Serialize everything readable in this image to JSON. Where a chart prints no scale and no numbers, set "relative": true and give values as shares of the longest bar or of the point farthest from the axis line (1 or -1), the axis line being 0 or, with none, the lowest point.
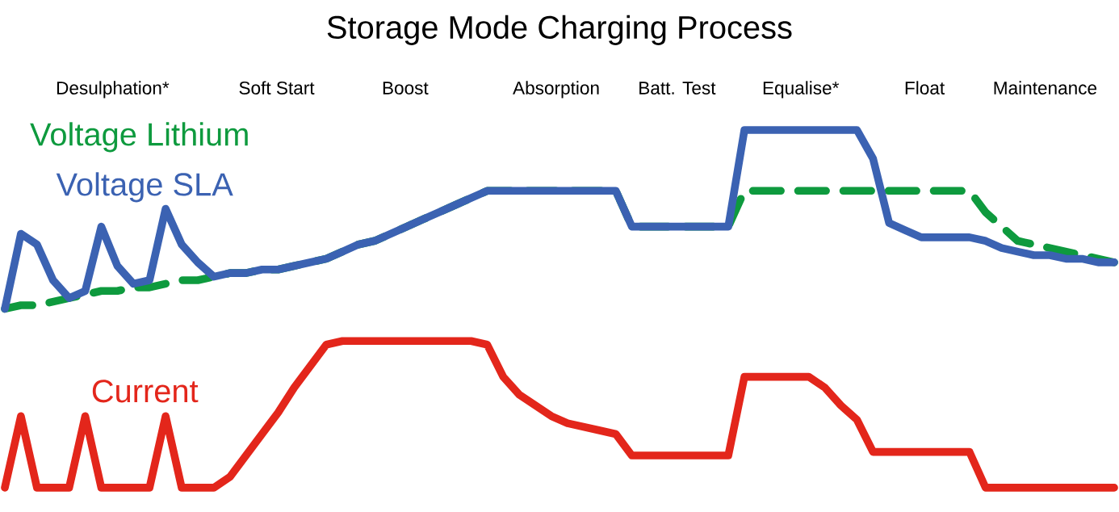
{
  "chart_data": {
    "type": "line",
    "title": "Storage Mode Charging Process",
    "relative": true,
    "legend": false,
    "annotations": [
      "Desulphation*",
      "Soft Start",
      "Boost",
      "Absorption",
      "Batt. Test",
      "Equalise*",
      "Float",
      "Maintenance"
    ],
    "categories": [
      null,
      null,
      null,
      null,
      null,
      null,
      null,
      null,
      null,
      null,
      null,
      null,
      null,
      null,
      null,
      null,
      null,
      null,
      null,
      null,
      null,
      null,
      null,
      null,
      null,
      null,
      null,
      null,
      null,
      null,
      null,
      null,
      null,
      null,
      null,
      null,
      null,
      null,
      null,
      null,
      null,
      null,
      null,
      null,
      null,
      null,
      null,
      null,
      null,
      null,
      null,
      null,
      null,
      null,
      null,
      null,
      null,
      null,
      null,
      null,
      null,
      null,
      null,
      null,
      null,
      null,
      null,
      null,
      null,
      null
    ],
    "series": [
      {
        "name": "Voltage Lithium",
        "color": "#0e9a3e",
        "line_style": "dashed",
        "values": [
          0.5,
          0.51,
          0.51,
          0.52,
          0.53,
          0.54,
          0.55,
          0.55,
          0.56,
          0.56,
          0.57,
          0.58,
          0.58,
          0.59,
          0.6,
          0.6,
          0.61,
          0.61,
          0.62,
          0.63,
          0.64,
          0.66,
          0.68,
          0.69,
          0.71,
          0.73,
          0.75,
          0.77,
          0.79,
          0.81,
          0.83,
          0.83,
          0.83,
          0.83,
          0.83,
          0.83,
          0.83,
          0.83,
          0.83,
          0.73,
          0.73,
          0.73,
          0.73,
          0.73,
          0.73,
          0.73,
          0.83,
          0.83,
          0.83,
          0.83,
          0.83,
          0.83,
          0.83,
          0.83,
          0.83,
          0.83,
          0.83,
          0.83,
          0.83,
          0.83,
          0.83,
          0.77,
          0.73,
          0.69,
          0.68,
          0.67,
          0.66,
          0.65,
          0.64,
          0.63
        ]
      },
      {
        "name": "Voltage SLA",
        "color": "#3b62b2",
        "values": [
          0.5,
          0.71,
          0.68,
          0.58,
          0.53,
          0.55,
          0.73,
          0.62,
          0.57,
          0.58,
          0.78,
          0.68,
          0.63,
          0.59,
          0.6,
          0.6,
          0.61,
          0.61,
          0.62,
          0.63,
          0.64,
          0.66,
          0.68,
          0.69,
          0.71,
          0.73,
          0.75,
          0.77,
          0.79,
          0.81,
          0.83,
          0.83,
          0.83,
          0.83,
          0.83,
          0.83,
          0.83,
          0.83,
          0.83,
          0.73,
          0.73,
          0.73,
          0.73,
          0.73,
          0.73,
          0.73,
          1.0,
          1.0,
          1.0,
          1.0,
          1.0,
          1.0,
          1.0,
          1.0,
          0.92,
          0.74,
          0.72,
          0.7,
          0.7,
          0.7,
          0.7,
          0.69,
          0.67,
          0.66,
          0.65,
          0.65,
          0.64,
          0.64,
          0.63,
          0.63
        ]
      },
      {
        "name": "Current",
        "color": "#e3261b",
        "values": [
          0,
          0.2,
          0,
          0,
          0,
          0.2,
          0,
          0,
          0,
          0,
          0.2,
          0,
          0,
          0,
          0.03,
          0.09,
          0.15,
          0.21,
          0.28,
          0.34,
          0.4,
          0.41,
          0.41,
          0.41,
          0.41,
          0.41,
          0.41,
          0.41,
          0.41,
          0.41,
          0.4,
          0.31,
          0.26,
          0.23,
          0.2,
          0.18,
          0.17,
          0.16,
          0.15,
          0.09,
          0.09,
          0.09,
          0.09,
          0.09,
          0.09,
          0.09,
          0.31,
          0.31,
          0.31,
          0.31,
          0.31,
          0.28,
          0.23,
          0.19,
          0.1,
          0.1,
          0.1,
          0.1,
          0.1,
          0.1,
          0.1,
          0,
          0,
          0,
          0,
          0,
          0,
          0,
          0,
          0
        ]
      }
    ]
  }
}
